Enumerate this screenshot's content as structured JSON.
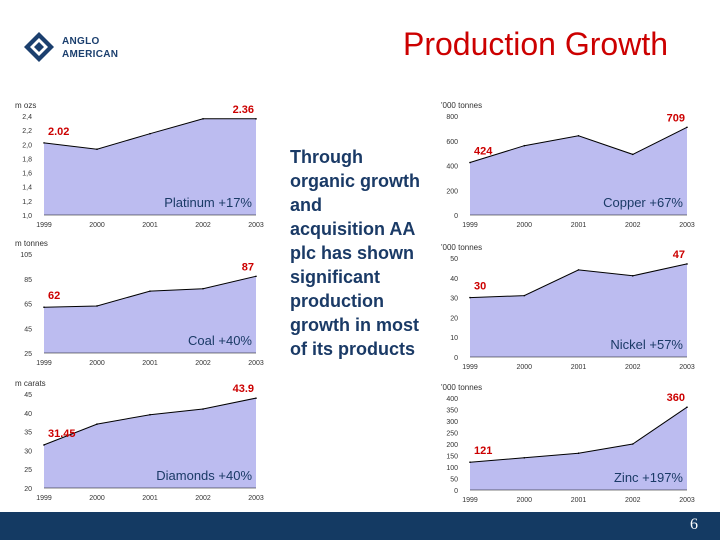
{
  "logo": {
    "line1": "ANGLO",
    "line2": "AMERICAN"
  },
  "title": "Production Growth",
  "middle_text": "Through organic growth and acquisition AA plc has shown significant production growth in most of its products",
  "footer": {
    "page_number": "6"
  },
  "colors": {
    "area_fill": "#bcbcf0",
    "area_line": "#000000",
    "highlight": "#cc0000",
    "label": "#1a3a66",
    "footer": "#143a63"
  },
  "chart_data": [
    {
      "id": "platinum",
      "type": "area",
      "unit": "m ozs",
      "x": [
        "1999",
        "2000",
        "2001",
        "2002",
        "2003"
      ],
      "values": [
        2.02,
        1.93,
        2.15,
        2.36,
        2.36
      ],
      "ylim": [
        1.0,
        2.4
      ],
      "yticks": [
        "1,0",
        "1,2",
        "1,4",
        "1,6",
        "1,8",
        "2,0",
        "2,2",
        "2,4"
      ],
      "first_label": "2.02",
      "last_label": "2.36",
      "caption": "Platinum +17%"
    },
    {
      "id": "coal",
      "type": "area",
      "unit": "m tonnes",
      "x": [
        "1999",
        "2000",
        "2001",
        "2002",
        "2003"
      ],
      "values": [
        62,
        63,
        75,
        77,
        87
      ],
      "ylim": [
        25,
        105
      ],
      "yticks": [
        "25",
        "45",
        "65",
        "85",
        "105"
      ],
      "first_label": "62",
      "last_label": "87",
      "caption": "Coal +40%"
    },
    {
      "id": "diamonds",
      "type": "area",
      "unit": "m carats",
      "x": [
        "1999",
        "2000",
        "2001",
        "2002",
        "2003"
      ],
      "values": [
        31.45,
        37,
        39.5,
        41,
        43.9
      ],
      "ylim": [
        20,
        45
      ],
      "yticks": [
        "20",
        "25",
        "30",
        "35",
        "40",
        "45"
      ],
      "first_label": "31.45",
      "last_label": "43.9",
      "caption": "Diamonds +40%"
    },
    {
      "id": "copper",
      "type": "area",
      "unit": "'000 tonnes",
      "x": [
        "1999",
        "2000",
        "2001",
        "2002",
        "2003"
      ],
      "values": [
        424,
        560,
        640,
        490,
        709
      ],
      "ylim": [
        0,
        800
      ],
      "yticks": [
        "0",
        "200",
        "400",
        "600",
        "800"
      ],
      "first_label": "424",
      "last_label": "709",
      "caption": "Copper +67%"
    },
    {
      "id": "nickel",
      "type": "area",
      "unit": "'000 tonnes",
      "x": [
        "1999",
        "2000",
        "2001",
        "2002",
        "2003"
      ],
      "values": [
        30,
        31,
        44,
        41,
        47
      ],
      "ylim": [
        0,
        50
      ],
      "yticks": [
        "0",
        "10",
        "20",
        "30",
        "40",
        "50"
      ],
      "first_label": "30",
      "last_label": "47",
      "caption": "Nickel +57%"
    },
    {
      "id": "zinc",
      "type": "area",
      "unit": "'000 tonnes",
      "x": [
        "1999",
        "2000",
        "2001",
        "2002",
        "2003"
      ],
      "values": [
        121,
        140,
        160,
        200,
        360
      ],
      "ylim": [
        0,
        400
      ],
      "yticks": [
        "0",
        "50",
        "100",
        "150",
        "200",
        "250",
        "300",
        "350",
        "400"
      ],
      "first_label": "121",
      "last_label": "360",
      "caption": "Zinc +197%"
    }
  ]
}
